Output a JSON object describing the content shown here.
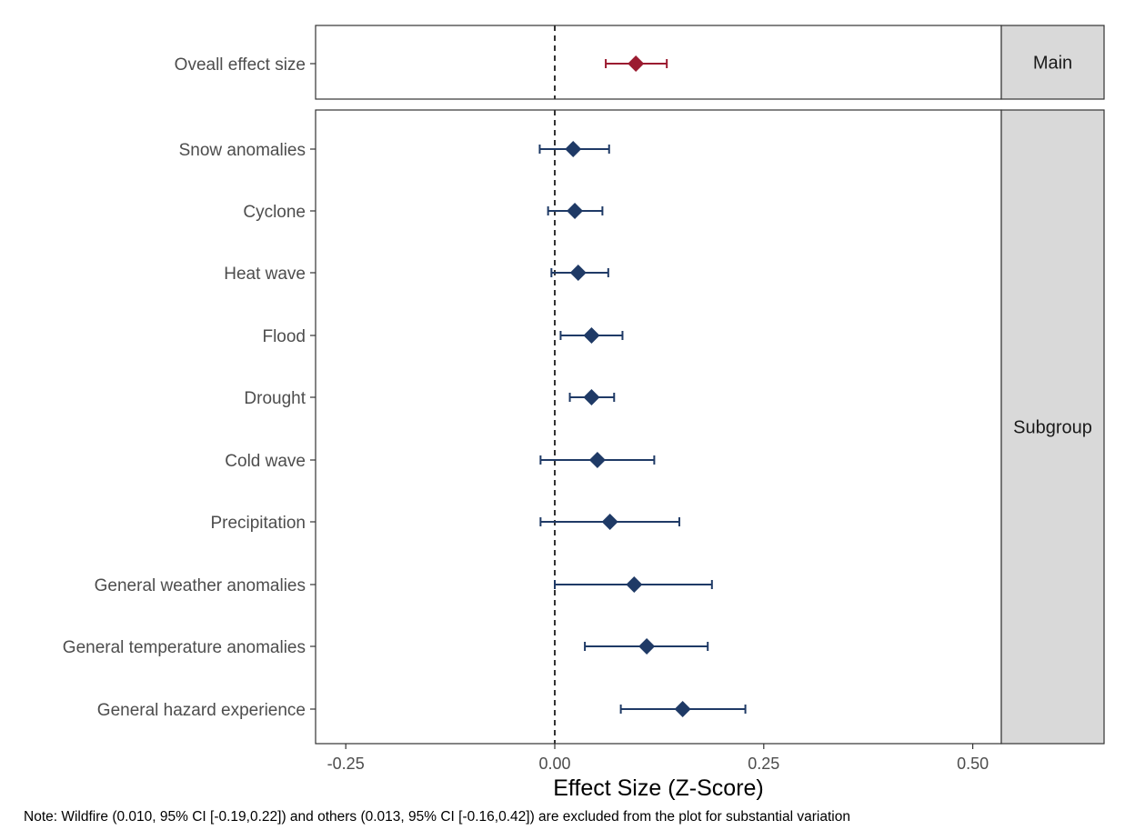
{
  "chart_data": {
    "type": "forest",
    "xlabel": "Effect Size (Z-Score)",
    "xlim": [
      -0.28,
      0.54
    ],
    "xticks": [
      -0.25,
      0.0,
      0.25,
      0.5
    ],
    "xtick_labels": [
      "-0.25",
      "0.00",
      "0.25",
      "0.50"
    ],
    "reference_line": 0.0,
    "grid": true,
    "panels": [
      {
        "strip": "Main",
        "color": "#9b1b30",
        "rows": [
          {
            "label": "Oveall effect size",
            "estimate": 0.097,
            "lower": 0.061,
            "upper": 0.134
          }
        ]
      },
      {
        "strip": "Subgroup",
        "color": "#1f3a66",
        "rows": [
          {
            "label": "Snow anomalies",
            "estimate": 0.022,
            "lower": -0.018,
            "upper": 0.065
          },
          {
            "label": "Cyclone",
            "estimate": 0.024,
            "lower": -0.008,
            "upper": 0.057
          },
          {
            "label": "Heat wave",
            "estimate": 0.028,
            "lower": -0.004,
            "upper": 0.064
          },
          {
            "label": "Flood",
            "estimate": 0.044,
            "lower": 0.007,
            "upper": 0.081
          },
          {
            "label": "Drought",
            "estimate": 0.044,
            "lower": 0.018,
            "upper": 0.071
          },
          {
            "label": "Cold wave",
            "estimate": 0.051,
            "lower": -0.017,
            "upper": 0.119
          },
          {
            "label": "Precipitation",
            "estimate": 0.066,
            "lower": -0.017,
            "upper": 0.149
          },
          {
            "label": "General weather anomalies",
            "estimate": 0.095,
            "lower": 0.0,
            "upper": 0.188
          },
          {
            "label": "General temperature anomalies",
            "estimate": 0.11,
            "lower": 0.036,
            "upper": 0.183
          },
          {
            "label": "General hazard experience",
            "estimate": 0.153,
            "lower": 0.079,
            "upper": 0.228
          }
        ]
      }
    ]
  },
  "note": "Note: Wildfire (0.010, 95% CI [-0.19,0.22]) and others (0.013, 95% CI [-0.16,0.42]) are excluded from the plot for substantial variation"
}
